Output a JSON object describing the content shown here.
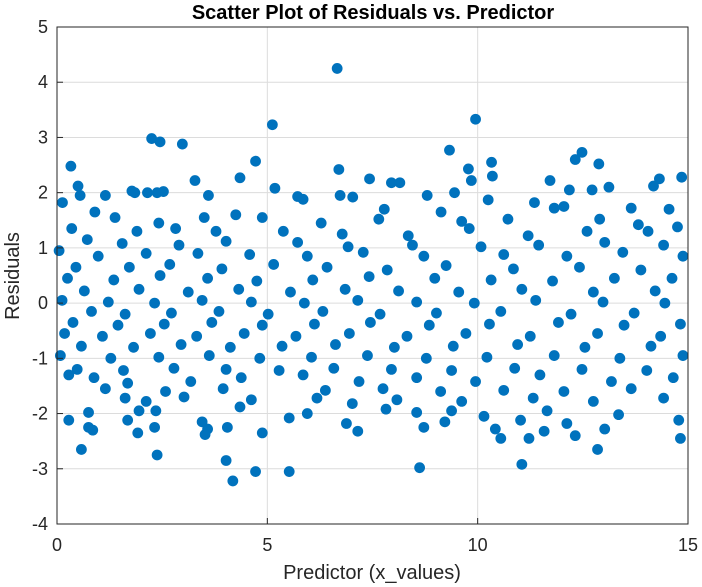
{
  "chart_data": {
    "type": "scatter",
    "title": "Scatter Plot of Residuals vs. Predictor",
    "xlabel": "Predictor (x_values)",
    "ylabel": "Residuals",
    "xlim": [
      0,
      15
    ],
    "ylim": [
      -4,
      5
    ],
    "xticks": [
      0,
      5,
      10,
      15
    ],
    "yticks": [
      -4,
      -3,
      -2,
      -1,
      0,
      1,
      2,
      3,
      4,
      5
    ],
    "grid": true,
    "legend": "none",
    "marker_color": "#0072BD",
    "series": [
      {
        "points": [
          [
            6.66,
            4.25
          ],
          [
            9.95,
            3.33
          ],
          [
            5.12,
            3.23
          ],
          [
            2.25,
            2.98
          ],
          [
            2.45,
            2.92
          ],
          [
            2.98,
            2.88
          ],
          [
            9.33,
            2.77
          ],
          [
            12.48,
            2.73
          ],
          [
            12.32,
            2.6
          ],
          [
            4.72,
            2.57
          ],
          [
            10.33,
            2.55
          ],
          [
            12.88,
            2.52
          ],
          [
            0.33,
            2.48
          ],
          [
            6.7,
            2.42
          ],
          [
            9.78,
            2.43
          ],
          [
            10.35,
            2.3
          ],
          [
            14.32,
            2.25
          ],
          [
            14.85,
            2.28
          ],
          [
            7.43,
            2.25
          ],
          [
            3.28,
            2.22
          ],
          [
            9.85,
            2.22
          ],
          [
            11.72,
            2.22
          ],
          [
            4.35,
            2.27
          ],
          [
            8.15,
            2.18
          ],
          [
            7.95,
            2.18
          ],
          [
            0.5,
            2.12
          ],
          [
            5.18,
            2.08
          ],
          [
            2.53,
            2.02
          ],
          [
            1.78,
            2.03
          ],
          [
            1.85,
            2.0
          ],
          [
            2.15,
            2.0
          ],
          [
            13.12,
            2.1
          ],
          [
            14.18,
            2.12
          ],
          [
            12.18,
            2.05
          ],
          [
            2.38,
            2.0
          ],
          [
            0.55,
            1.95
          ],
          [
            12.72,
            2.05
          ],
          [
            9.45,
            2.0
          ],
          [
            6.73,
            1.95
          ],
          [
            7.03,
            1.92
          ],
          [
            5.72,
            1.93
          ],
          [
            5.85,
            1.88
          ],
          [
            1.15,
            1.95
          ],
          [
            3.6,
            1.95
          ],
          [
            8.8,
            1.95
          ],
          [
            11.35,
            1.82
          ],
          [
            0.13,
            1.82
          ],
          [
            10.25,
            1.87
          ],
          [
            13.65,
            1.72
          ],
          [
            14.55,
            1.7
          ],
          [
            12.05,
            1.75
          ],
          [
            11.82,
            1.72
          ],
          [
            7.78,
            1.7
          ],
          [
            9.13,
            1.65
          ],
          [
            0.9,
            1.65
          ],
          [
            1.38,
            1.55
          ],
          [
            2.42,
            1.45
          ],
          [
            3.5,
            1.55
          ],
          [
            4.25,
            1.6
          ],
          [
            4.88,
            1.55
          ],
          [
            6.28,
            1.45
          ],
          [
            7.65,
            1.52
          ],
          [
            9.62,
            1.48
          ],
          [
            10.72,
            1.52
          ],
          [
            12.9,
            1.52
          ],
          [
            13.82,
            1.42
          ],
          [
            14.75,
            1.38
          ],
          [
            0.35,
            1.35
          ],
          [
            1.9,
            1.3
          ],
          [
            2.82,
            1.35
          ],
          [
            3.78,
            1.3
          ],
          [
            5.38,
            1.3
          ],
          [
            6.78,
            1.25
          ],
          [
            8.35,
            1.22
          ],
          [
            9.8,
            1.35
          ],
          [
            11.2,
            1.22
          ],
          [
            12.6,
            1.3
          ],
          [
            14.05,
            1.3
          ],
          [
            0.72,
            1.15
          ],
          [
            1.55,
            1.08
          ],
          [
            2.9,
            1.05
          ],
          [
            4.02,
            1.12
          ],
          [
            5.72,
            1.1
          ],
          [
            6.92,
            1.02
          ],
          [
            8.45,
            1.05
          ],
          [
            10.08,
            1.02
          ],
          [
            11.45,
            1.05
          ],
          [
            13.02,
            1.1
          ],
          [
            14.42,
            1.05
          ],
          [
            0.05,
            0.95
          ],
          [
            0.98,
            0.85
          ],
          [
            2.12,
            0.9
          ],
          [
            3.35,
            0.9
          ],
          [
            4.58,
            0.88
          ],
          [
            5.95,
            0.85
          ],
          [
            7.28,
            0.92
          ],
          [
            8.72,
            0.85
          ],
          [
            10.62,
            0.88
          ],
          [
            12.12,
            0.85
          ],
          [
            13.45,
            0.92
          ],
          [
            14.88,
            0.85
          ],
          [
            0.45,
            0.65
          ],
          [
            1.72,
            0.65
          ],
          [
            2.68,
            0.7
          ],
          [
            3.92,
            0.62
          ],
          [
            5.15,
            0.7
          ],
          [
            6.42,
            0.65
          ],
          [
            7.85,
            0.6
          ],
          [
            9.25,
            0.68
          ],
          [
            10.85,
            0.62
          ],
          [
            12.42,
            0.65
          ],
          [
            13.88,
            0.6
          ],
          [
            0.25,
            0.45
          ],
          [
            1.35,
            0.42
          ],
          [
            2.45,
            0.5
          ],
          [
            3.58,
            0.45
          ],
          [
            4.75,
            0.4
          ],
          [
            6.08,
            0.42
          ],
          [
            7.42,
            0.48
          ],
          [
            8.98,
            0.45
          ],
          [
            10.32,
            0.42
          ],
          [
            11.78,
            0.4
          ],
          [
            13.25,
            0.45
          ],
          [
            14.62,
            0.45
          ],
          [
            0.65,
            0.22
          ],
          [
            1.95,
            0.25
          ],
          [
            3.12,
            0.2
          ],
          [
            4.32,
            0.25
          ],
          [
            5.55,
            0.2
          ],
          [
            6.85,
            0.25
          ],
          [
            8.12,
            0.22
          ],
          [
            9.55,
            0.2
          ],
          [
            11.05,
            0.25
          ],
          [
            12.75,
            0.2
          ],
          [
            14.22,
            0.22
          ],
          [
            0.12,
            0.05
          ],
          [
            1.22,
            0.02
          ],
          [
            2.32,
            0.0
          ],
          [
            3.45,
            0.05
          ],
          [
            4.62,
            0.02
          ],
          [
            5.88,
            0.0
          ],
          [
            7.15,
            0.05
          ],
          [
            8.55,
            0.02
          ],
          [
            9.92,
            0.0
          ],
          [
            11.38,
            0.05
          ],
          [
            12.98,
            0.02
          ],
          [
            14.45,
            0.0
          ],
          [
            0.82,
            -0.15
          ],
          [
            1.62,
            -0.2
          ],
          [
            2.72,
            -0.18
          ],
          [
            3.85,
            -0.15
          ],
          [
            5.02,
            -0.2
          ],
          [
            6.32,
            -0.15
          ],
          [
            7.68,
            -0.2
          ],
          [
            9.02,
            -0.18
          ],
          [
            10.55,
            -0.15
          ],
          [
            12.22,
            -0.2
          ],
          [
            13.72,
            -0.18
          ],
          [
            0.38,
            -0.35
          ],
          [
            1.45,
            -0.4
          ],
          [
            2.55,
            -0.38
          ],
          [
            3.68,
            -0.35
          ],
          [
            4.88,
            -0.4
          ],
          [
            6.12,
            -0.38
          ],
          [
            7.45,
            -0.35
          ],
          [
            8.85,
            -0.4
          ],
          [
            10.28,
            -0.38
          ],
          [
            11.92,
            -0.35
          ],
          [
            13.48,
            -0.4
          ],
          [
            14.82,
            -0.38
          ],
          [
            0.18,
            -0.55
          ],
          [
            1.08,
            -0.6
          ],
          [
            2.22,
            -0.55
          ],
          [
            3.32,
            -0.6
          ],
          [
            4.45,
            -0.55
          ],
          [
            5.68,
            -0.6
          ],
          [
            6.95,
            -0.55
          ],
          [
            8.32,
            -0.6
          ],
          [
            9.72,
            -0.55
          ],
          [
            11.25,
            -0.6
          ],
          [
            12.85,
            -0.55
          ],
          [
            14.35,
            -0.6
          ],
          [
            0.58,
            -0.78
          ],
          [
            1.82,
            -0.8
          ],
          [
            2.95,
            -0.75
          ],
          [
            4.12,
            -0.8
          ],
          [
            5.35,
            -0.78
          ],
          [
            6.62,
            -0.75
          ],
          [
            8.02,
            -0.8
          ],
          [
            9.42,
            -0.78
          ],
          [
            10.95,
            -0.75
          ],
          [
            12.55,
            -0.8
          ],
          [
            14.12,
            -0.78
          ],
          [
            0.08,
            -0.95
          ],
          [
            1.28,
            -1.0
          ],
          [
            2.42,
            -0.98
          ],
          [
            3.62,
            -0.95
          ],
          [
            4.82,
            -1.0
          ],
          [
            6.05,
            -0.98
          ],
          [
            7.38,
            -0.95
          ],
          [
            8.78,
            -1.0
          ],
          [
            10.22,
            -0.98
          ],
          [
            11.82,
            -0.95
          ],
          [
            13.38,
            -1.0
          ],
          [
            14.88,
            -0.95
          ],
          [
            0.48,
            -1.2
          ],
          [
            1.58,
            -1.22
          ],
          [
            2.78,
            -1.18
          ],
          [
            4.02,
            -1.2
          ],
          [
            5.28,
            -1.22
          ],
          [
            6.58,
            -1.18
          ],
          [
            7.95,
            -1.2
          ],
          [
            9.38,
            -1.22
          ],
          [
            10.88,
            -1.18
          ],
          [
            12.48,
            -1.2
          ],
          [
            14.02,
            -1.22
          ],
          [
            0.28,
            -1.3
          ],
          [
            0.88,
            -1.35
          ],
          [
            1.68,
            -1.45
          ],
          [
            3.18,
            -1.42
          ],
          [
            4.38,
            -1.35
          ],
          [
            5.85,
            -1.3
          ],
          [
            7.18,
            -1.42
          ],
          [
            8.55,
            -1.35
          ],
          [
            9.95,
            -1.42
          ],
          [
            11.48,
            -1.3
          ],
          [
            13.18,
            -1.42
          ],
          [
            14.65,
            -1.35
          ],
          [
            1.15,
            -1.55
          ],
          [
            2.58,
            -1.6
          ],
          [
            3.95,
            -1.55
          ],
          [
            6.38,
            -1.58
          ],
          [
            7.75,
            -1.55
          ],
          [
            9.12,
            -1.6
          ],
          [
            10.62,
            -1.58
          ],
          [
            12.05,
            -1.6
          ],
          [
            13.65,
            -1.55
          ],
          [
            1.62,
            -1.72
          ],
          [
            2.12,
            -1.78
          ],
          [
            3.02,
            -1.7
          ],
          [
            4.62,
            -1.75
          ],
          [
            6.18,
            -1.72
          ],
          [
            7.02,
            -1.82
          ],
          [
            8.08,
            -1.75
          ],
          [
            9.62,
            -1.78
          ],
          [
            11.32,
            -1.72
          ],
          [
            12.75,
            -1.78
          ],
          [
            14.42,
            -1.72
          ],
          [
            0.75,
            -1.98
          ],
          [
            1.95,
            -1.95
          ],
          [
            2.35,
            -1.95
          ],
          [
            4.35,
            -1.88
          ],
          [
            5.95,
            -2.0
          ],
          [
            7.82,
            -1.92
          ],
          [
            8.55,
            -1.98
          ],
          [
            9.38,
            -1.95
          ],
          [
            10.15,
            -2.05
          ],
          [
            11.65,
            -1.95
          ],
          [
            13.35,
            -2.02
          ],
          [
            0.28,
            -2.12
          ],
          [
            1.68,
            -2.12
          ],
          [
            3.45,
            -2.15
          ],
          [
            5.52,
            -2.08
          ],
          [
            6.88,
            -2.18
          ],
          [
            9.22,
            -2.15
          ],
          [
            11.02,
            -2.12
          ],
          [
            12.12,
            -2.18
          ],
          [
            14.78,
            -2.12
          ],
          [
            0.75,
            -2.25
          ],
          [
            0.85,
            -2.3
          ],
          [
            2.32,
            -2.25
          ],
          [
            3.58,
            -2.28
          ],
          [
            4.05,
            -2.25
          ],
          [
            7.15,
            -2.32
          ],
          [
            8.72,
            -2.25
          ],
          [
            10.42,
            -2.28
          ],
          [
            11.58,
            -2.32
          ],
          [
            13.02,
            -2.28
          ],
          [
            1.92,
            -2.35
          ],
          [
            4.88,
            -2.35
          ],
          [
            3.52,
            -2.38
          ],
          [
            12.32,
            -2.4
          ],
          [
            10.55,
            -2.45
          ],
          [
            11.22,
            -2.45
          ],
          [
            14.82,
            -2.45
          ],
          [
            0.58,
            -2.65
          ],
          [
            12.85,
            -2.65
          ],
          [
            2.38,
            -2.75
          ],
          [
            4.02,
            -2.85
          ],
          [
            11.05,
            -2.92
          ],
          [
            8.62,
            -2.98
          ],
          [
            4.72,
            -3.05
          ],
          [
            5.52,
            -3.05
          ],
          [
            4.18,
            -3.22
          ]
        ]
      }
    ]
  }
}
